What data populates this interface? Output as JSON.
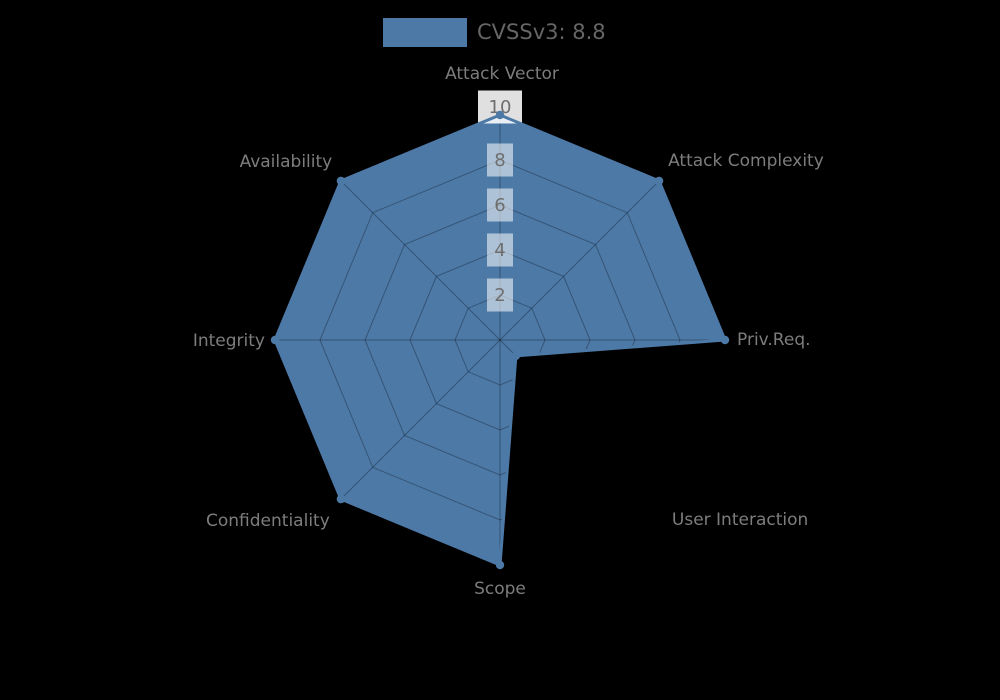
{
  "figure": {
    "background": "#000000"
  },
  "legend": {
    "label": "CVSSv3: 8.8",
    "swatch_color": "#4d79a7"
  },
  "colors": {
    "series": "#4d79a7",
    "grid_line": "rgba(0,0,0,0.30)",
    "axis_label": "#7d7d7d",
    "tick_label": "#6e6e6e",
    "legend_text": "#666666",
    "tick_box": "#ffffff"
  },
  "chart_data": {
    "type": "radar",
    "title": "",
    "legend_entries": [
      "CVSSv3: 8.8"
    ],
    "legend_position": "top-center",
    "categories": [
      "Attack Vector",
      "Attack Complexity",
      "Priv.Req.",
      "User Interaction",
      "Scope",
      "Confidentiality",
      "Integrity",
      "Availability"
    ],
    "series": [
      {
        "name": "CVSSv3: 8.8",
        "values": [
          10,
          10,
          10,
          1,
          10,
          10,
          10,
          10
        ]
      }
    ],
    "rlim": [
      0,
      10
    ],
    "rticks": [
      2,
      4,
      6,
      8,
      10
    ],
    "grid": true,
    "start_axis": "top",
    "direction": "clockwise"
  }
}
